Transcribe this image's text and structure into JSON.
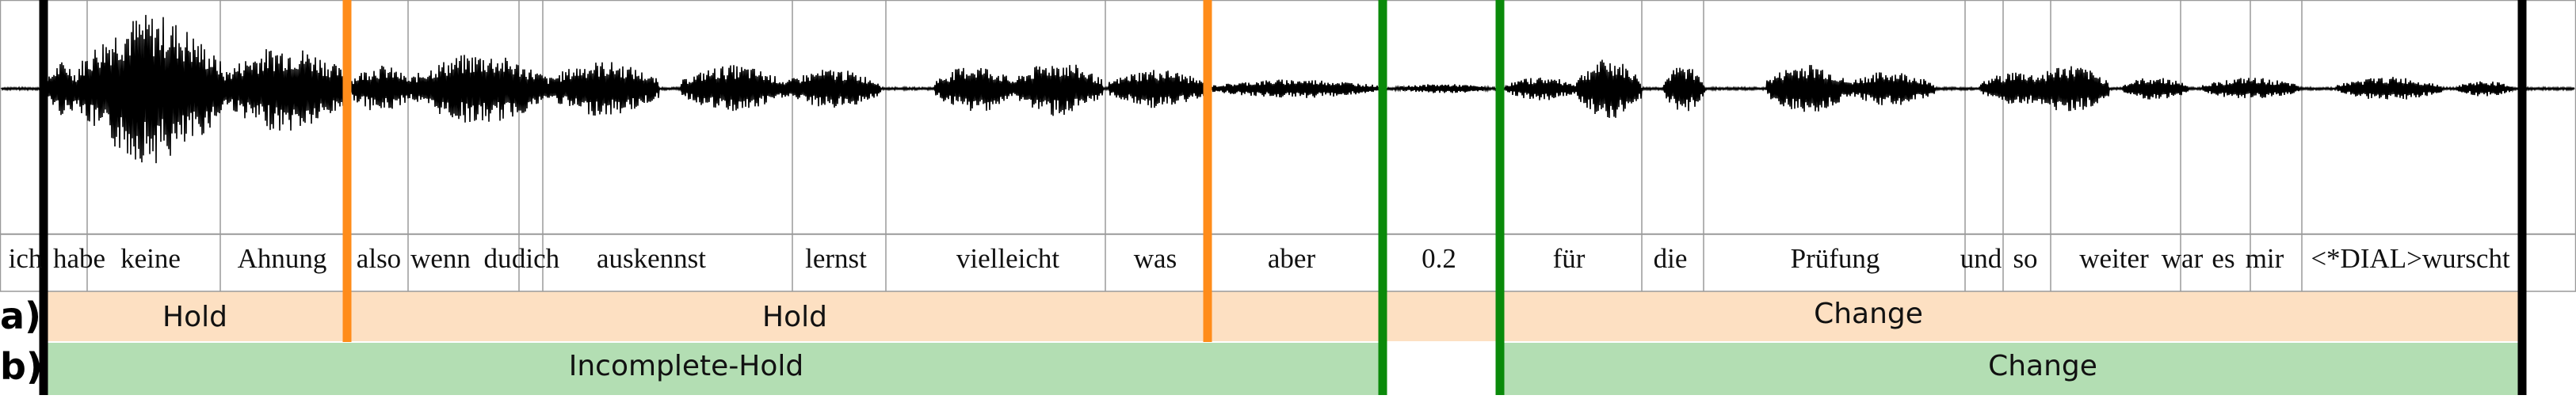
{
  "words": [
    "ich",
    "habe",
    "keine",
    "Ahnung",
    "also",
    "wenn",
    "du",
    "dich",
    "auskennst",
    "lernst",
    "vielleicht",
    "was",
    "aber",
    "0.2",
    "für",
    "die",
    "Prüfung",
    "und",
    "so",
    "weiter",
    "war",
    "es",
    "mir",
    "<*DIAL>wurscht"
  ],
  "rows": [
    {
      "label": "a)",
      "segments": [
        "Hold",
        "Hold",
        "Change"
      ]
    },
    {
      "label": "b)",
      "segments": [
        "Incomplete-Hold",
        "",
        "Change"
      ]
    }
  ],
  "colors": {
    "hold_fill": "#fde0c2",
    "incomplete_fill": "#b3deb3",
    "orange_boundary": "#ff8c1a",
    "green_boundary": "#0a8a0a",
    "waveform": "#000000",
    "grid": "#9a9a9a"
  }
}
